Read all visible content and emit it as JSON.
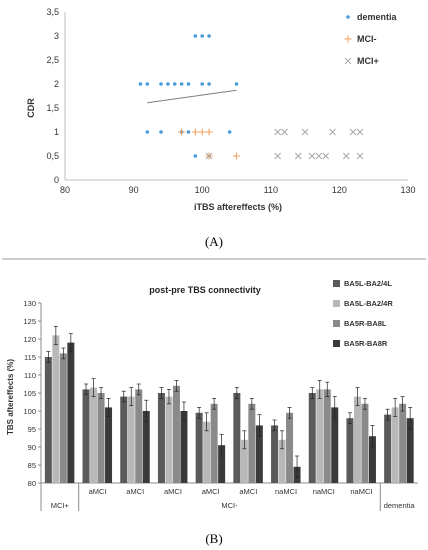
{
  "chart_data": [
    {
      "type": "scatter",
      "panel_label": "(A)",
      "xlabel": "iTBS aftereffects (%)",
      "ylabel": "CDR",
      "xlim": [
        80,
        130
      ],
      "ylim": [
        0,
        3.5
      ],
      "xticks": [
        "80",
        "90",
        "100",
        "110",
        "120",
        "130"
      ],
      "yticks": [
        "0",
        "0,5",
        "1",
        "1,5",
        "2",
        "2,5",
        "3",
        "3,5"
      ],
      "grid": false,
      "legend_position": "top-right",
      "series": [
        {
          "name": "dementia",
          "marker": "dot",
          "color": "#4a9bd8",
          "points": [
            [
              99,
              3
            ],
            [
              100,
              3
            ],
            [
              101,
              3
            ],
            [
              91,
              2
            ],
            [
              92,
              2
            ],
            [
              94,
              2
            ],
            [
              95,
              2
            ],
            [
              96,
              2
            ],
            [
              97,
              2
            ],
            [
              98,
              2
            ],
            [
              100,
              2
            ],
            [
              101,
              2
            ],
            [
              105,
              2
            ],
            [
              92,
              1
            ],
            [
              94,
              1
            ],
            [
              97,
              1
            ],
            [
              98,
              1
            ],
            [
              104,
              1
            ],
            [
              99,
              0.5
            ]
          ]
        },
        {
          "name": "MCI-",
          "marker": "plus",
          "color": "#f0a060",
          "points": [
            [
              97,
              1
            ],
            [
              99,
              1
            ],
            [
              100,
              1
            ],
            [
              101,
              1
            ],
            [
              101,
              0.5
            ],
            [
              105,
              0.5
            ]
          ]
        },
        {
          "name": "MCI+",
          "marker": "cross",
          "color": "#a8a8a8",
          "points": [
            [
              101,
              0.5
            ],
            [
              111,
              1
            ],
            [
              112,
              1
            ],
            [
              115,
              1
            ],
            [
              119,
              1
            ],
            [
              122,
              1
            ],
            [
              123,
              1
            ],
            [
              111,
              0.5
            ],
            [
              114,
              0.5
            ],
            [
              116,
              0.5
            ],
            [
              117,
              0.5
            ],
            [
              118,
              0.5
            ],
            [
              121,
              0.5
            ],
            [
              123,
              0.5
            ]
          ]
        }
      ],
      "trendline": {
        "x": [
          92,
          105
        ],
        "y": [
          1.61,
          1.87
        ],
        "color": "#808080"
      }
    },
    {
      "type": "bar",
      "panel_label": "(B)",
      "title": "post-pre TBS connectivity",
      "ylabel": "TBS aftereffects (%)",
      "ylim": [
        80,
        130
      ],
      "yticks": [
        "80",
        "85",
        "90",
        "95",
        "100",
        "105",
        "110",
        "115",
        "120",
        "125",
        "130"
      ],
      "grid": false,
      "legend_position": "top-right",
      "categories": [
        "",
        "aMCI",
        "aMCI",
        "aMCI",
        "aMCI",
        "aMCI",
        "naMCI",
        "naMCI",
        "naMCI",
        ""
      ],
      "groups": [
        {
          "label": "MCI+",
          "span": [
            0,
            0
          ]
        },
        {
          "label": "MCI-",
          "span": [
            1,
            8
          ]
        },
        {
          "label": "dementia",
          "span": [
            9,
            9
          ]
        }
      ],
      "series": [
        {
          "name": "BA5L-BA2/4L",
          "color": "#5a5a5a",
          "values": [
            115,
            106,
            104,
            105,
            99.5,
            105,
            96,
            105,
            98,
            99
          ],
          "errors": [
            1.5,
            1.5,
            1.5,
            1.5,
            1.5,
            1.5,
            1.5,
            1.5,
            1.5,
            1.5
          ]
        },
        {
          "name": "BA5L-BA2/4R",
          "color": "#b8b8b8",
          "values": [
            121,
            106.5,
            104,
            104,
            97,
            92,
            92,
            106,
            104,
            101
          ],
          "errors": [
            2.5,
            2.5,
            2.5,
            2.0,
            2.5,
            2.5,
            2.5,
            2.5,
            2.5,
            2.5
          ]
        },
        {
          "name": "BA5R-BA8L",
          "color": "#8a8a8a",
          "values": [
            116,
            105,
            106,
            107,
            102,
            102,
            99.5,
            106,
            102,
            102
          ],
          "errors": [
            1.5,
            1.5,
            1.5,
            1.5,
            1.5,
            1.5,
            1.5,
            2.0,
            1.5,
            2.0
          ]
        },
        {
          "name": "BA5R-BA8R",
          "color": "#3a3a3a",
          "values": [
            119,
            101,
            100,
            100,
            90.5,
            96,
            84.5,
            101,
            93,
            98
          ],
          "errors": [
            2.5,
            2.5,
            3.0,
            2.5,
            3.0,
            3.0,
            3.0,
            3.0,
            3.0,
            3.0
          ]
        }
      ]
    }
  ]
}
